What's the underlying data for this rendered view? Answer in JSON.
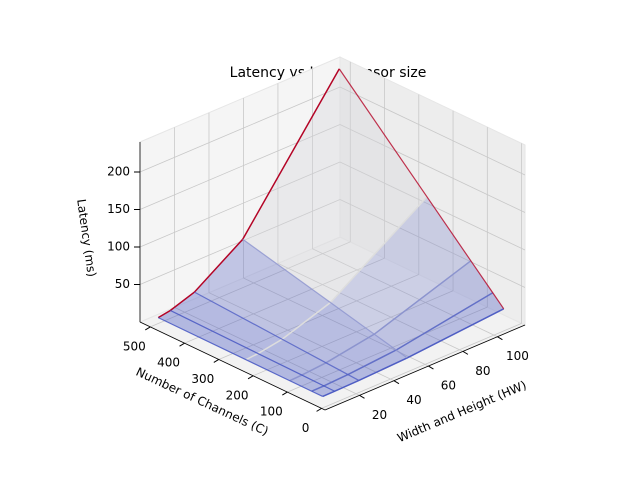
{
  "chart_data": {
    "type": "surface3d",
    "title": "Latency vs Input tensor size",
    "xlabel": "Width and Height (HW)",
    "ylabel": "Number of Channels (C)",
    "zlabel": "Latency (ms)",
    "x": [
      7,
      14,
      28,
      56,
      112
    ],
    "y": [
      32,
      64,
      128,
      256,
      512
    ],
    "z": [
      [
        2.1,
        2.2,
        2.9,
        5.6,
        16.4
      ],
      [
        2.1,
        2.4,
        3.8,
        9.2,
        30.8
      ],
      [
        2.2,
        2.9,
        5.6,
        16.4,
        59.5
      ],
      [
        2.4,
        3.8,
        9.2,
        30.8,
        117
      ],
      [
        2.9,
        5.6,
        16.4,
        59.5,
        232
      ]
    ],
    "xlim": [
      0,
      116
    ],
    "ylim": [
      -10,
      530
    ],
    "zlim": [
      0,
      240
    ],
    "xticks": [
      20,
      40,
      60,
      80,
      100
    ],
    "yticks": [
      0,
      100,
      200,
      300,
      400,
      500
    ],
    "zticks": [
      50,
      100,
      150,
      200
    ],
    "colormap": "coolwarm",
    "grid": true
  }
}
